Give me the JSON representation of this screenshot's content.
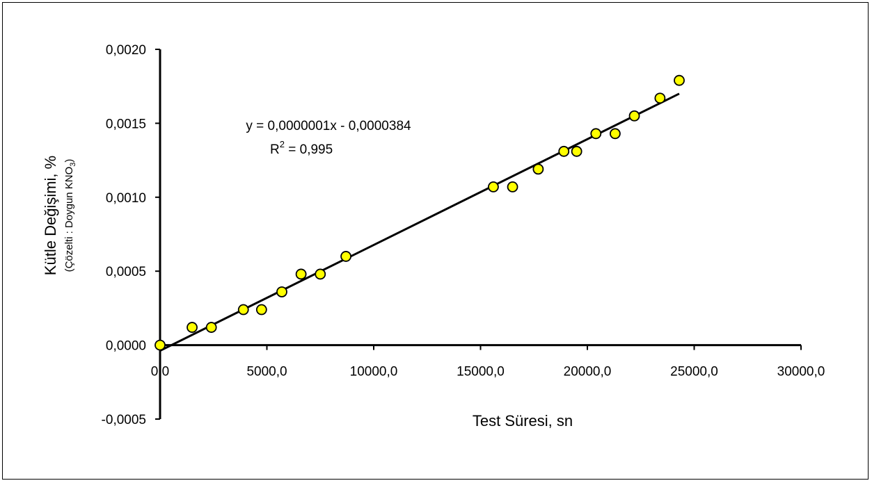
{
  "chart_data": {
    "type": "scatter",
    "xlabel": "Test Süresi, sn",
    "ylabel": "Kütle Değişimi, %",
    "ylabel_sub_prefix": "(Çözelti : Doygun KNO",
    "ylabel_sub_index": "3",
    "ylabel_sub_suffix": ")",
    "xlim": [
      0,
      30000
    ],
    "ylim": [
      -0.0005,
      0.002
    ],
    "x_ticks": [
      0,
      5000,
      10000,
      15000,
      20000,
      25000,
      30000
    ],
    "x_tick_labels": [
      "0,0",
      "5000,0",
      "10000,0",
      "15000,0",
      "20000,0",
      "25000,0",
      "30000,0"
    ],
    "y_ticks": [
      -0.0005,
      0,
      0.0005,
      0.001,
      0.0015,
      0.002
    ],
    "y_tick_labels": [
      "-0,0005",
      "0,0000",
      "0,0005",
      "0,0010",
      "0,0015",
      "0,0020"
    ],
    "grid": false,
    "marker_color": "#ffff00",
    "marker_edge": "#000000",
    "points": [
      {
        "x": 0,
        "y": 0.0
      },
      {
        "x": 1500,
        "y": 0.00012
      },
      {
        "x": 2400,
        "y": 0.00012
      },
      {
        "x": 3900,
        "y": 0.00024
      },
      {
        "x": 4750,
        "y": 0.00024
      },
      {
        "x": 5700,
        "y": 0.00036
      },
      {
        "x": 6600,
        "y": 0.00048
      },
      {
        "x": 7500,
        "y": 0.00048
      },
      {
        "x": 8700,
        "y": 0.0006
      },
      {
        "x": 15600,
        "y": 0.00107
      },
      {
        "x": 16500,
        "y": 0.00107
      },
      {
        "x": 17700,
        "y": 0.00119
      },
      {
        "x": 18900,
        "y": 0.00131
      },
      {
        "x": 19500,
        "y": 0.00131
      },
      {
        "x": 20400,
        "y": 0.00143
      },
      {
        "x": 21300,
        "y": 0.00143
      },
      {
        "x": 22200,
        "y": 0.00155
      },
      {
        "x": 23400,
        "y": 0.00167
      },
      {
        "x": 24300,
        "y": 0.00179
      }
    ],
    "trendline": {
      "x_start": 0,
      "x_end": 24300,
      "y_start": -3.8e-05,
      "y_end": 0.0017,
      "equation": "y = 0,0000001x - 0,0000384",
      "r2_prefix": "R",
      "r2_sup": "2",
      "r2_suffix": " = 0,995"
    }
  }
}
